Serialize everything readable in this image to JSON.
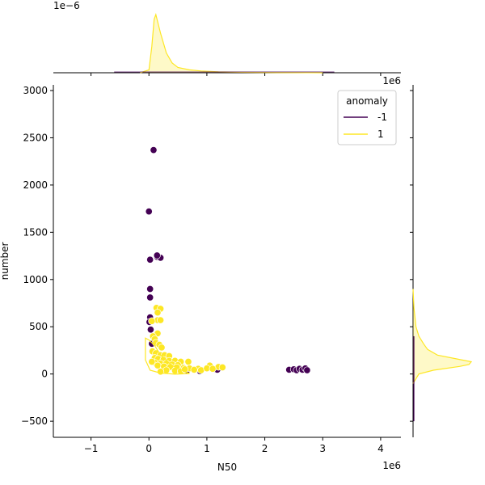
{
  "colors": {
    "anomaly_neg": "#440154",
    "anomaly_pos": "#fde725",
    "kde_fill": "#fde72540",
    "axis": "#000000"
  },
  "chart_data": {
    "type": "scatter",
    "subtype": "jointplot-with-marginal-kde",
    "xlabel": "N50",
    "ylabel": "number",
    "x_offset_text": "1e6",
    "marginal_x_offset_text": "1e−6",
    "marginal_y_offset_text": "1e6",
    "xlim": [
      -1.65,
      4.35
    ],
    "ylim": [
      -670,
      3060
    ],
    "xticks": [
      -1,
      0,
      1,
      2,
      3,
      4
    ],
    "yticks": [
      -500,
      0,
      500,
      1000,
      1500,
      2000,
      2500,
      3000
    ],
    "xtick_labels": [
      "−1",
      "0",
      "1",
      "2",
      "3",
      "4"
    ],
    "ytick_labels": [
      "−500",
      "0",
      "500",
      "1000",
      "1500",
      "2000",
      "2500",
      "3000"
    ],
    "legend": {
      "title": "anomaly",
      "placement": "upper right",
      "entries": [
        {
          "label": "-1",
          "color": "#440154"
        },
        {
          "label": "1",
          "color": "#fde725"
        }
      ]
    },
    "series": [
      {
        "name": "-1",
        "color": "#440154",
        "points": [
          [
            0.08,
            2370
          ],
          [
            0.0,
            1720
          ],
          [
            0.14,
            1240
          ],
          [
            0.2,
            1230
          ],
          [
            0.02,
            1210
          ],
          [
            0.14,
            1255
          ],
          [
            0.02,
            900
          ],
          [
            0.02,
            810
          ],
          [
            0.02,
            600
          ],
          [
            0.01,
            550
          ],
          [
            0.03,
            470
          ],
          [
            0.05,
            320
          ],
          [
            0.66,
            40
          ],
          [
            0.88,
            30
          ],
          [
            1.15,
            50
          ],
          [
            1.18,
            45
          ],
          [
            2.42,
            45
          ],
          [
            2.5,
            50
          ],
          [
            2.55,
            40
          ],
          [
            2.6,
            55
          ],
          [
            2.65,
            45
          ],
          [
            2.7,
            60
          ],
          [
            2.73,
            40
          ]
        ]
      },
      {
        "name": "1",
        "color": "#fde725",
        "points": [
          [
            0.13,
            700
          ],
          [
            0.2,
            690
          ],
          [
            0.15,
            650
          ],
          [
            0.15,
            570
          ],
          [
            0.2,
            570
          ],
          [
            0.05,
            560
          ],
          [
            0.15,
            430
          ],
          [
            0.07,
            400
          ],
          [
            0.1,
            370
          ],
          [
            0.12,
            330
          ],
          [
            0.18,
            310
          ],
          [
            0.22,
            280
          ],
          [
            0.06,
            240
          ],
          [
            0.12,
            220
          ],
          [
            0.2,
            200
          ],
          [
            0.27,
            200
          ],
          [
            0.35,
            190
          ],
          [
            0.1,
            170
          ],
          [
            0.16,
            160
          ],
          [
            0.25,
            150
          ],
          [
            0.35,
            140
          ],
          [
            0.45,
            140
          ],
          [
            0.55,
            130
          ],
          [
            0.68,
            130
          ],
          [
            0.1,
            120
          ],
          [
            0.2,
            110
          ],
          [
            0.3,
            110
          ],
          [
            0.4,
            100
          ],
          [
            0.5,
            95
          ],
          [
            0.15,
            90
          ],
          [
            0.26,
            80
          ],
          [
            0.37,
            75
          ],
          [
            0.48,
            70
          ],
          [
            0.6,
            65
          ],
          [
            0.7,
            60
          ],
          [
            0.85,
            55
          ],
          [
            0.78,
            45
          ],
          [
            0.9,
            40
          ],
          [
            1.05,
            90
          ],
          [
            1.2,
            75
          ],
          [
            1.27,
            70
          ],
          [
            1.0,
            60
          ],
          [
            1.1,
            55
          ],
          [
            0.3,
            40
          ],
          [
            0.45,
            35
          ],
          [
            0.55,
            30
          ],
          [
            0.2,
            25
          ],
          [
            0.62,
            50
          ],
          [
            0.05,
            130
          ]
        ]
      }
    ],
    "marginal_x_kde": {
      "series": "1",
      "x": [
        -0.15,
        0.0,
        0.05,
        0.09,
        0.12,
        0.2,
        0.3,
        0.4,
        0.5,
        0.7,
        0.9,
        1.2,
        1.6,
        2.2,
        3.0
      ],
      "density": [
        0,
        0.05,
        0.45,
        0.92,
        1.0,
        0.68,
        0.34,
        0.17,
        0.09,
        0.05,
        0.03,
        0.015,
        0.008,
        0.003,
        0.0
      ]
    },
    "marginal_y_kde": {
      "series": "1",
      "y": [
        -100,
        0,
        40,
        80,
        100,
        130,
        160,
        200,
        260,
        320,
        400,
        500,
        700,
        900
      ],
      "density": [
        0,
        0.1,
        0.35,
        0.8,
        0.96,
        1.0,
        0.75,
        0.42,
        0.25,
        0.18,
        0.1,
        0.05,
        0.015,
        0.0
      ]
    },
    "grid": false
  }
}
